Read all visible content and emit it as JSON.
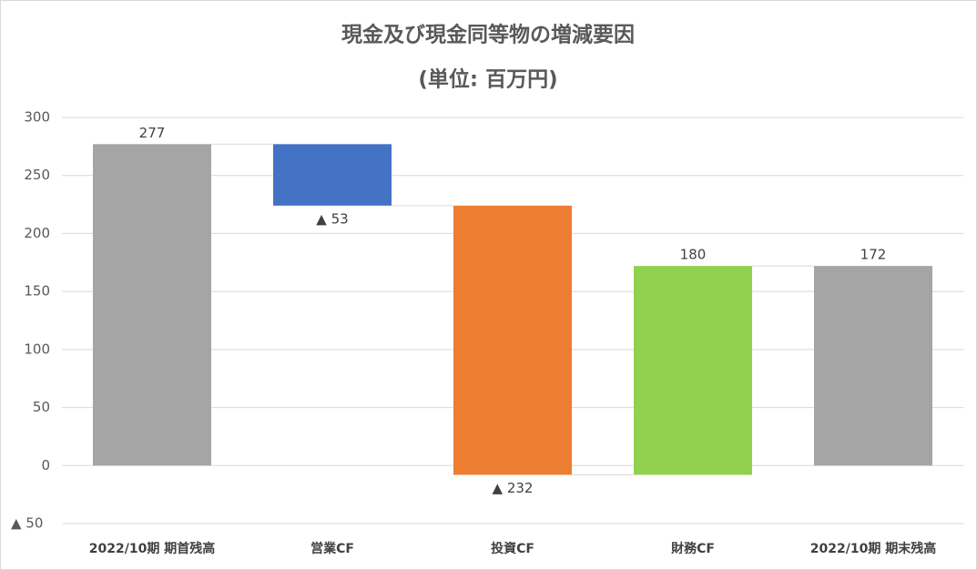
{
  "chart_data": {
    "type": "waterfall",
    "title": "現金及び現金同等物の増減要因",
    "subtitle": "(単位: 百万円)",
    "categories": [
      "2022/10期 期首残高",
      "営業CF",
      "投資CF",
      "財務CF",
      "2022/10期 期末残高"
    ],
    "values": [
      277,
      -53,
      -232,
      180,
      172
    ],
    "value_labels": [
      "277",
      "▲ 53",
      "▲ 232",
      "180",
      "172"
    ],
    "colors": [
      "#a5a5a5",
      "#4472c4",
      "#ed7d31",
      "#92d050",
      "#a5a5a5"
    ],
    "ylim": [
      -50,
      300
    ],
    "yticks": [
      {
        "value": -50,
        "label": "▲ 50"
      },
      0,
      50,
      100,
      150,
      200,
      250,
      300
    ],
    "grid": true
  }
}
